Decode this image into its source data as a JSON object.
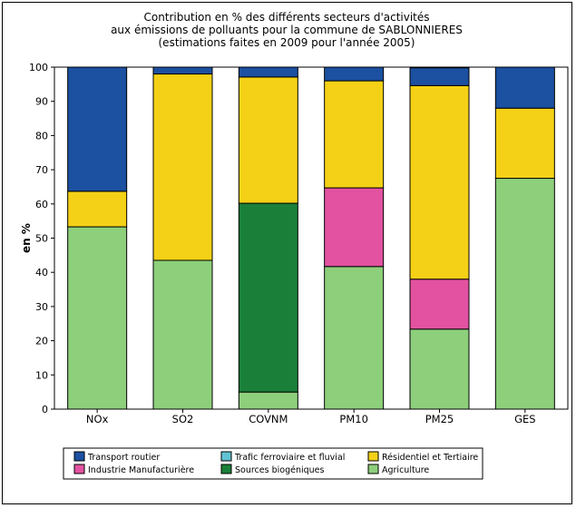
{
  "chart_data": {
    "type": "bar",
    "stacked": true,
    "title_lines": [
      "Contribution en % des différents secteurs d'activités",
      "aux émissions de polluants pour la commune de SABLONNIERES",
      "(estimations faites en 2009 pour l'année 2005)"
    ],
    "ylabel": "en %",
    "xlabel": "",
    "ylim": [
      0,
      100
    ],
    "yticks": [
      0,
      10,
      20,
      30,
      40,
      50,
      60,
      70,
      80,
      90,
      100
    ],
    "grid": false,
    "legend_position": "bottom",
    "categories": [
      "NOx",
      "SO2",
      "COVNM",
      "PM10",
      "PM25",
      "GES"
    ],
    "series": [
      {
        "name": "Agriculture",
        "color": "#8dcf7b",
        "values": [
          53.3,
          43.5,
          5.0,
          41.7,
          23.4,
          67.5
        ]
      },
      {
        "name": "Sources biogéniques",
        "color": "#1a8039",
        "values": [
          0,
          0,
          55.2,
          0,
          0,
          0
        ]
      },
      {
        "name": "Industrie Manufacturière",
        "color": "#e252a0",
        "values": [
          0,
          0,
          0,
          23.0,
          14.6,
          0
        ]
      },
      {
        "name": "Résidentiel et Tertiaire",
        "color": "#f4d116",
        "values": [
          10.4,
          54.5,
          36.9,
          31.3,
          56.6,
          20.5
        ]
      },
      {
        "name": "Trafic ferroviaire et fluvial",
        "color": "#60c3d3",
        "values": [
          0,
          0,
          0,
          0,
          0,
          0
        ]
      },
      {
        "name": "Transport routier",
        "color": "#1c50a0",
        "values": [
          36.3,
          2.0,
          2.9,
          4.0,
          5.2,
          12.0
        ]
      }
    ],
    "legend_order": [
      "Transport routier",
      "Trafic ferroviaire et fluvial",
      "Résidentiel et Tertiaire",
      "Industrie Manufacturière",
      "Sources biogéniques",
      "Agriculture"
    ]
  }
}
